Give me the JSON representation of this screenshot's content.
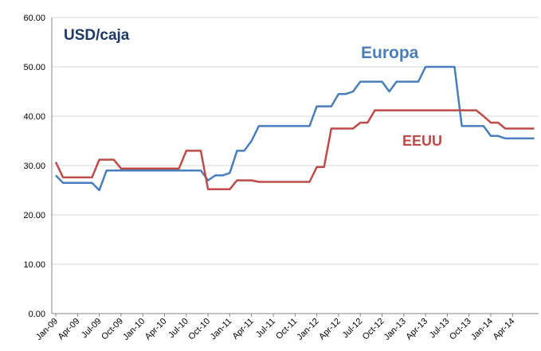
{
  "chart_data": {
    "type": "line",
    "ylabel": "USD/caja",
    "categories": [
      "Jan-09",
      null,
      null,
      "Apr-09",
      null,
      null,
      "Jul-09",
      null,
      null,
      "Oct-09",
      null,
      null,
      "Jan-10",
      null,
      null,
      "Apr-10",
      null,
      null,
      "Jul-10",
      null,
      null,
      "Oct-10",
      null,
      null,
      "Jan-11",
      null,
      null,
      "Apr-11",
      null,
      null,
      "Jul-11",
      null,
      null,
      "Oct-11",
      null,
      null,
      "Jan-12",
      null,
      null,
      "Apr-12",
      null,
      null,
      "Jul-12",
      null,
      null,
      "Oct-12",
      null,
      null,
      "Jan-13",
      null,
      null,
      "Apr-13",
      null,
      null,
      "Jul-13",
      null,
      null,
      "Oct-13",
      null,
      null,
      "Jan-14",
      null,
      null,
      "Apr-14",
      null,
      null,
      null
    ],
    "series": [
      {
        "name": "Europa",
        "color": "#4a7ebb",
        "values": [
          28,
          26.5,
          26.5,
          26.5,
          26.5,
          26.5,
          25,
          29,
          29,
          29,
          29,
          29,
          29,
          29,
          29,
          29,
          29,
          29,
          29,
          29,
          29,
          27,
          28,
          28,
          28.5,
          33,
          33,
          35,
          38,
          38,
          38,
          38,
          38,
          38,
          38,
          38,
          42,
          42,
          42,
          44.5,
          44.5,
          45,
          47,
          47,
          47,
          47,
          45,
          47,
          47,
          47,
          47,
          50,
          50,
          50,
          50,
          50,
          38,
          38,
          38,
          38,
          36,
          36,
          35.5,
          35.5,
          35.5,
          35.5,
          35.5
        ]
      },
      {
        "name": "EEUU",
        "color": "#be4b48",
        "values": [
          30.7,
          27.6,
          27.6,
          27.6,
          27.6,
          27.6,
          31.2,
          31.2,
          31.2,
          29.4,
          29.4,
          29.4,
          29.4,
          29.4,
          29.4,
          29.4,
          29.4,
          29.4,
          33,
          33,
          33,
          25.2,
          25.2,
          25.2,
          25.2,
          27,
          27,
          27,
          26.7,
          26.7,
          26.7,
          26.7,
          26.7,
          26.7,
          26.7,
          26.7,
          29.7,
          29.7,
          37.5,
          37.5,
          37.5,
          37.5,
          38.7,
          38.7,
          41.2,
          41.2,
          41.2,
          41.2,
          41.2,
          41.2,
          41.2,
          41.2,
          41.2,
          41.2,
          41.2,
          41.2,
          41.2,
          41.2,
          41.2,
          40,
          38.7,
          38.7,
          37.5,
          37.5,
          37.5,
          37.5,
          37.5
        ]
      }
    ],
    "ylim": [
      0,
      60
    ],
    "yticks": [
      {
        "value": 0,
        "label": "0.00"
      },
      {
        "value": 10,
        "label": "10.00"
      },
      {
        "value": 20,
        "label": "20.00"
      },
      {
        "value": 30,
        "label": "30.00"
      },
      {
        "value": 40,
        "label": "40.00"
      },
      {
        "value": 50,
        "label": "50.00"
      },
      {
        "value": 60,
        "label": "60.00"
      }
    ],
    "grid": true
  }
}
